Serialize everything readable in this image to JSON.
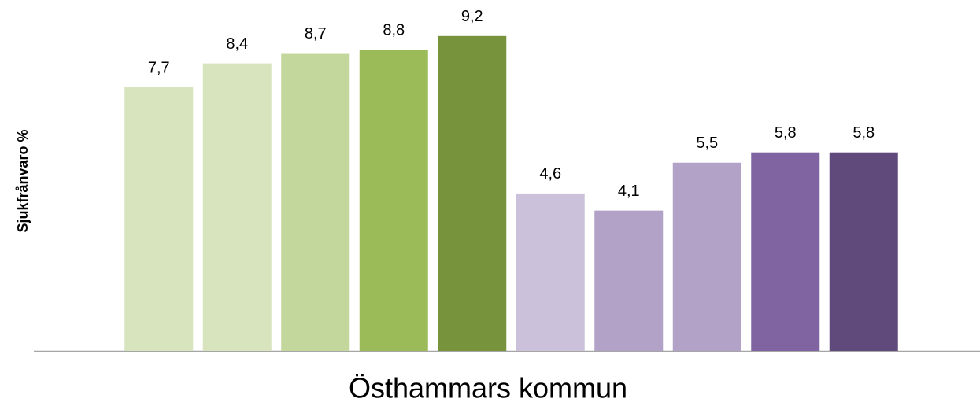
{
  "chart_data": {
    "type": "bar",
    "xlabel": "Östhammars kommun",
    "ylabel": "Sjukfrånvaro %",
    "categories": [
      null,
      null,
      null,
      null,
      null,
      null,
      null,
      null,
      null,
      null
    ],
    "values": [
      7.7,
      8.4,
      8.7,
      8.8,
      9.2,
      4.6,
      4.1,
      5.5,
      5.8,
      5.8
    ],
    "value_labels": [
      "7,7",
      "8,4",
      "8,7",
      "8,8",
      "9,2",
      "4,6",
      "4,1",
      "5,5",
      "5,8",
      "5,8"
    ],
    "colors": [
      "#d7e4bd",
      "#d7e4bd",
      "#c3d69b",
      "#9bbb59",
      "#77933c",
      "#ccc1da",
      "#b3a2c7",
      "#b3a2c7",
      "#8064a2",
      "#604a7b"
    ],
    "ylim": [
      0,
      10
    ]
  }
}
